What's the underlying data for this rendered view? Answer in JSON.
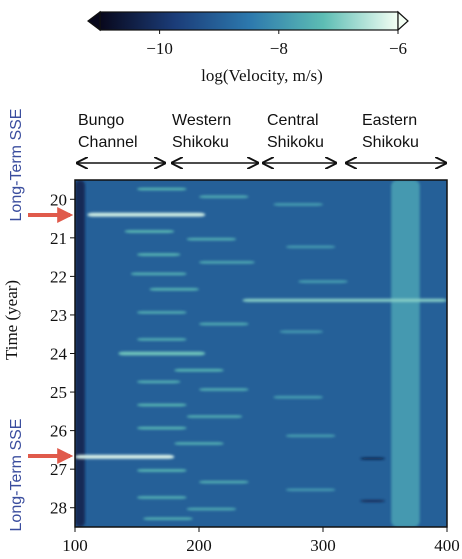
{
  "chart_data": {
    "type": "heatmap",
    "colorbar": {
      "label": "log(Velocity, m/s)",
      "clim": [
        -11,
        -6
      ],
      "ticks": [
        {
          "value": -10,
          "label": "−10"
        },
        {
          "value": -8,
          "label": "−8"
        },
        {
          "value": -6,
          "label": "−6"
        }
      ]
    },
    "colormap": [
      "#08081c",
      "#1b3c78",
      "#2c78ad",
      "#5dbdb4",
      "#f4fff4"
    ],
    "background": -9,
    "regions": [
      [
        "Bungo",
        "Channel"
      ],
      [
        "Western",
        "Shikoku"
      ],
      [
        "Central",
        "Shikoku"
      ],
      [
        "Eastern",
        "Shikoku"
      ]
    ],
    "annotations": [
      "Long-Term SSE",
      "Long-Term SSE"
    ],
    "ylabel": "Time (year)",
    "xlim": [
      100,
      400
    ],
    "xticks": [
      100,
      200,
      300,
      400
    ],
    "ylim": [
      19.5,
      28.5
    ],
    "yticks": [
      20,
      21,
      22,
      23,
      24,
      25,
      26,
      27,
      28
    ],
    "streaks": [
      [
        100,
        108,
        19.5,
        28.5,
        -10.2
      ],
      [
        355,
        378,
        19.5,
        28.5,
        -7.9
      ],
      [
        110,
        205,
        20.35,
        20.45,
        -6.3
      ],
      [
        235,
        400,
        22.58,
        22.66,
        -6.9
      ],
      [
        135,
        205,
        23.95,
        24.05,
        -7.1
      ],
      [
        100,
        180,
        26.63,
        26.73,
        -6.2
      ],
      [
        150,
        190,
        19.7,
        19.77,
        -7.4
      ],
      [
        200,
        240,
        19.9,
        19.97,
        -7.6
      ],
      [
        260,
        300,
        20.1,
        20.17,
        -7.8
      ],
      [
        140,
        180,
        20.8,
        20.87,
        -7.3
      ],
      [
        190,
        230,
        21.0,
        21.07,
        -7.5
      ],
      [
        270,
        310,
        21.2,
        21.27,
        -7.9
      ],
      [
        150,
        185,
        21.4,
        21.47,
        -7.4
      ],
      [
        200,
        245,
        21.6,
        21.67,
        -7.6
      ],
      [
        145,
        190,
        21.9,
        21.97,
        -7.5
      ],
      [
        280,
        320,
        22.1,
        22.17,
        -7.8
      ],
      [
        160,
        200,
        22.3,
        22.37,
        -7.4
      ],
      [
        150,
        190,
        22.9,
        22.97,
        -7.5
      ],
      [
        200,
        240,
        23.2,
        23.27,
        -7.6
      ],
      [
        265,
        300,
        23.4,
        23.47,
        -7.9
      ],
      [
        150,
        190,
        23.6,
        23.67,
        -7.5
      ],
      [
        180,
        220,
        24.4,
        24.47,
        -7.4
      ],
      [
        150,
        185,
        24.7,
        24.77,
        -7.5
      ],
      [
        200,
        240,
        24.9,
        24.97,
        -7.5
      ],
      [
        260,
        300,
        25.1,
        25.17,
        -7.8
      ],
      [
        150,
        190,
        25.3,
        25.37,
        -7.4
      ],
      [
        190,
        235,
        25.6,
        25.67,
        -7.5
      ],
      [
        150,
        190,
        25.9,
        25.97,
        -7.4
      ],
      [
        270,
        310,
        26.1,
        26.17,
        -7.8
      ],
      [
        180,
        220,
        26.3,
        26.37,
        -7.5
      ],
      [
        150,
        190,
        27.0,
        27.07,
        -7.4
      ],
      [
        200,
        240,
        27.3,
        27.37,
        -7.5
      ],
      [
        270,
        310,
        27.5,
        27.57,
        -7.9
      ],
      [
        150,
        190,
        27.7,
        27.77,
        -7.5
      ],
      [
        190,
        230,
        28.0,
        28.07,
        -7.6
      ],
      [
        155,
        195,
        28.25,
        28.32,
        -7.5
      ],
      [
        330,
        350,
        26.7,
        26.75,
        -10.5
      ],
      [
        330,
        350,
        27.8,
        27.85,
        -10.3
      ]
    ]
  }
}
